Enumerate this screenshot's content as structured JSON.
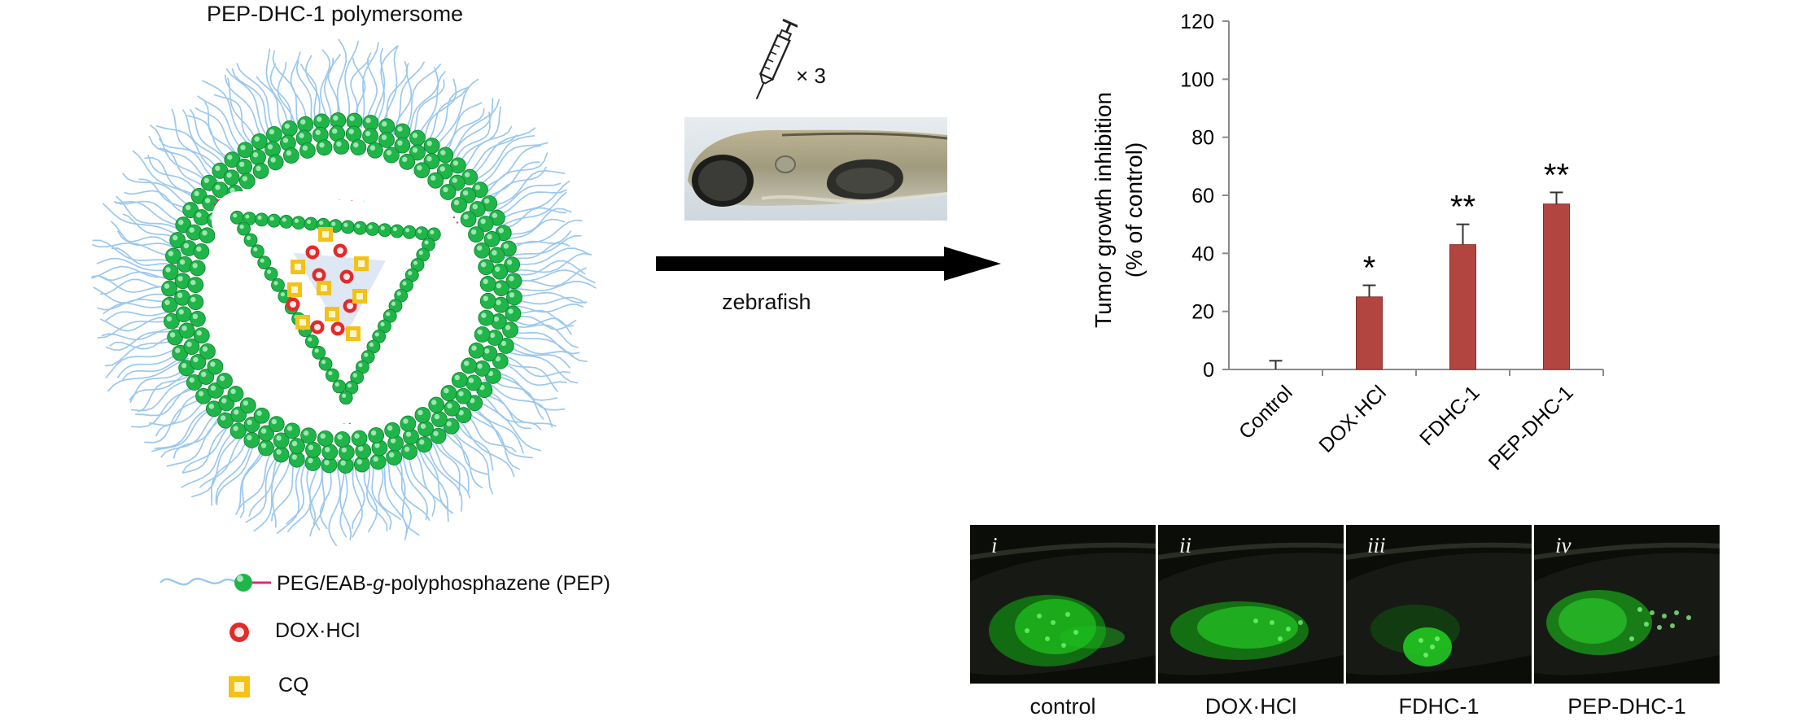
{
  "polymersome": {
    "title": "PEP-DHC-1 polymersome",
    "colors": {
      "peg_chain": "#9cc8ee",
      "sphere": "#1fb548",
      "linker": "#e0287a",
      "dox": "#e32a2a",
      "cq": "#f3c21a",
      "core": "#dde8f4"
    }
  },
  "legend": {
    "items": [
      {
        "label_pre": "PEG/EAB-",
        "label_italic": "g",
        "label_post": "-polyphosphazene (PEP)",
        "icon": "polymer-chain-icon"
      },
      {
        "label": "DOX·HCl",
        "icon": "red-sphere-icon"
      },
      {
        "label": "CQ",
        "icon": "yellow-cube-icon"
      }
    ]
  },
  "process": {
    "injection_label": "× 3",
    "injection_icon": "syringe-icon",
    "arrow_label": "zebrafish",
    "photo_icon": "zebrafish-larva-photo"
  },
  "chart_data": {
    "type": "bar",
    "categories": [
      "Control",
      "DOX·HCl",
      "FDHC-1",
      "PEP-DHC-1"
    ],
    "values": [
      0,
      25,
      43,
      57
    ],
    "errors": [
      3,
      4,
      7,
      4
    ],
    "significance": [
      "",
      "*",
      "**",
      "**"
    ],
    "ylabel_line1": "Tumor growth inhibition",
    "ylabel_line2": "(% of control)",
    "yticks": [
      0,
      20,
      40,
      60,
      80,
      100,
      120
    ],
    "ylim": [
      0,
      120
    ],
    "bar_color": "#b34540",
    "grid": false
  },
  "fluorescence": {
    "panels": [
      {
        "roman": "i",
        "caption": "control"
      },
      {
        "roman": "ii",
        "caption": "DOX·HCl"
      },
      {
        "roman": "iii",
        "caption": "FDHC-1"
      },
      {
        "roman": "iv",
        "caption": "PEP-DHC-1"
      }
    ]
  }
}
